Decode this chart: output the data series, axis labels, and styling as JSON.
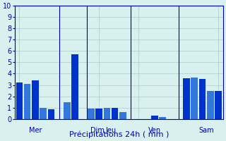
{
  "xlabel": "Précipitations 24h ( mm )",
  "background_color": "#d8f0ee",
  "bar_color_dark": "#0033cc",
  "bar_color_light": "#3377dd",
  "grid_color": "#aacccc",
  "axis_color": "#0000aa",
  "text_color": "#0000aa",
  "ylim": [
    0,
    10
  ],
  "yticks": [
    0,
    1,
    2,
    3,
    4,
    5,
    6,
    7,
    8,
    9,
    10
  ],
  "bar_values": [
    3.2,
    3.1,
    3.4,
    1.0,
    0.85,
    1.5,
    5.7,
    0.9,
    0.9,
    0.95,
    0.95,
    0.6,
    0.0,
    0.0,
    0.3,
    0.15,
    3.6,
    3.65,
    3.5,
    2.5,
    2.5
  ],
  "num_bars": 21,
  "total_slots": 26,
  "bar_slots": [
    0,
    1,
    2,
    3,
    4,
    6,
    7,
    9,
    10,
    11,
    12,
    13,
    15,
    16,
    17,
    18,
    21,
    22,
    23,
    24,
    25
  ],
  "vline_slots": [
    5.0,
    8.5,
    14.0,
    20.0
  ],
  "day_labels": [
    {
      "text": "Mer",
      "slot": 2.0
    },
    {
      "text": "Dim",
      "slot": 9.8
    },
    {
      "text": "Jeu",
      "slot": 11.5
    },
    {
      "text": "Ven",
      "slot": 17.0
    },
    {
      "text": "Sam",
      "slot": 23.5
    }
  ]
}
